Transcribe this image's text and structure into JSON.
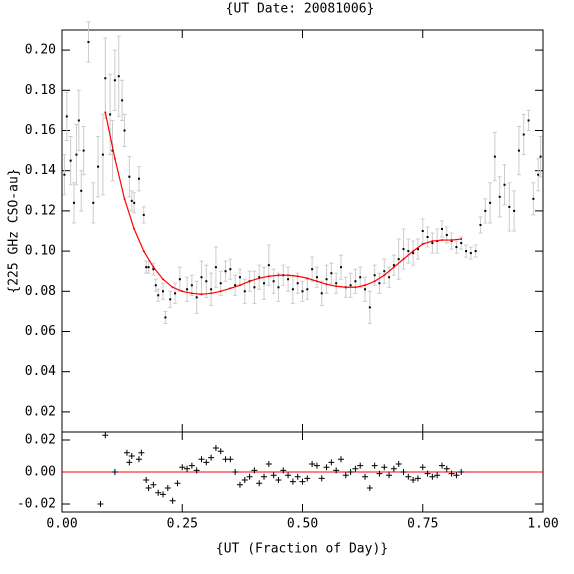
{
  "chart_data": [
    {
      "type": "scatter",
      "title": "{UT Date: 20081006}",
      "y_label": "{225 GHz CSO-au}",
      "xlim": [
        0,
        1
      ],
      "ylim": [
        0.01,
        0.21
      ],
      "yticks": [
        0.02,
        0.04,
        0.06,
        0.08,
        {
          "value": 0.1,
          "label": "0.10"
        },
        0.12,
        0.14,
        0.16,
        0.18,
        {
          "value": 0.2,
          "label": "0.20"
        }
      ],
      "series": [
        {
          "type": "scatter",
          "color": "#000000",
          "error_color": "#cccccc",
          "x": [
            0.005,
            0.01,
            0.018,
            0.025,
            0.03,
            0.035,
            0.04,
            0.045,
            0.055,
            0.065,
            0.075,
            0.085,
            0.09,
            0.1,
            0.105,
            0.11,
            0.118,
            0.125,
            0.13,
            0.14,
            0.145,
            0.15,
            0.16,
            0.17,
            0.175,
            0.18,
            0.19,
            0.195,
            0.2,
            0.21,
            0.215,
            0.225,
            0.235,
            0.245,
            0.26,
            0.27,
            0.28,
            0.29,
            0.3,
            0.31,
            0.32,
            0.33,
            0.34,
            0.35,
            0.36,
            0.37,
            0.38,
            0.39,
            0.4,
            0.41,
            0.42,
            0.43,
            0.44,
            0.45,
            0.46,
            0.47,
            0.48,
            0.49,
            0.5,
            0.51,
            0.52,
            0.53,
            0.54,
            0.55,
            0.56,
            0.57,
            0.58,
            0.59,
            0.6,
            0.61,
            0.62,
            0.63,
            0.64,
            0.65,
            0.66,
            0.67,
            0.68,
            0.69,
            0.7,
            0.71,
            0.72,
            0.73,
            0.74,
            0.75,
            0.76,
            0.77,
            0.78,
            0.79,
            0.8,
            0.81,
            0.82,
            0.83,
            0.84,
            0.85,
            0.86,
            0.87,
            0.88,
            0.89,
            0.9,
            0.91,
            0.92,
            0.93,
            0.94,
            0.95,
            0.96,
            0.97,
            0.98,
            0.99,
            0.995
          ],
          "values": [
            0.138,
            0.167,
            0.145,
            0.124,
            0.148,
            0.165,
            0.13,
            0.15,
            0.204,
            0.124,
            0.142,
            0.148,
            0.186,
            0.168,
            0.15,
            0.185,
            0.187,
            0.175,
            0.16,
            0.137,
            0.125,
            0.124,
            0.136,
            0.118,
            0.092,
            0.092,
            0.091,
            0.083,
            0.078,
            0.08,
            0.067,
            0.076,
            0.079,
            0.086,
            0.081,
            0.083,
            0.077,
            0.087,
            0.085,
            0.081,
            0.092,
            0.084,
            0.09,
            0.091,
            0.083,
            0.087,
            0.08,
            0.085,
            0.082,
            0.087,
            0.084,
            0.093,
            0.085,
            0.082,
            0.088,
            0.086,
            0.081,
            0.084,
            0.08,
            0.081,
            0.091,
            0.087,
            0.079,
            0.086,
            0.089,
            0.084,
            0.092,
            0.082,
            0.083,
            0.085,
            0.087,
            0.081,
            0.072,
            0.088,
            0.084,
            0.09,
            0.087,
            0.093,
            0.096,
            0.101,
            0.1,
            0.099,
            0.101,
            0.11,
            0.107,
            0.104,
            0.105,
            0.111,
            0.108,
            0.105,
            0.102,
            0.104,
            0.1,
            0.099,
            0.1,
            0.113,
            0.12,
            0.124,
            0.147,
            0.127,
            0.133,
            0.122,
            0.12,
            0.15,
            0.158,
            0.165,
            0.126,
            0.138,
            0.147
          ],
          "errors": [
            0.01,
            0.012,
            0.012,
            0.01,
            0.015,
            0.015,
            0.01,
            0.012,
            0.01,
            0.01,
            0.015,
            0.02,
            0.02,
            0.02,
            0.015,
            0.015,
            0.02,
            0.01,
            0.008,
            0.01,
            0.005,
            0.005,
            0.006,
            0.004,
            0.003,
            0.003,
            0.003,
            0.003,
            0.003,
            0.004,
            0.003,
            0.004,
            0.005,
            0.006,
            0.006,
            0.005,
            0.008,
            0.008,
            0.008,
            0.008,
            0.01,
            0.006,
            0.005,
            0.005,
            0.005,
            0.004,
            0.006,
            0.005,
            0.008,
            0.006,
            0.008,
            0.01,
            0.006,
            0.007,
            0.005,
            0.006,
            0.007,
            0.005,
            0.005,
            0.005,
            0.006,
            0.005,
            0.006,
            0.007,
            0.005,
            0.005,
            0.006,
            0.005,
            0.006,
            0.006,
            0.005,
            0.006,
            0.008,
            0.005,
            0.005,
            0.006,
            0.005,
            0.005,
            0.01,
            0.01,
            0.006,
            0.006,
            0.005,
            0.006,
            0.005,
            0.005,
            0.006,
            0.004,
            0.004,
            0.004,
            0.003,
            0.003,
            0.003,
            0.003,
            0.003,
            0.004,
            0.006,
            0.01,
            0.012,
            0.01,
            0.01,
            0.012,
            0.01,
            0.012,
            0.01,
            0.005,
            0.008,
            0.008,
            0.01
          ]
        },
        {
          "type": "line",
          "color": "#ff0000",
          "x": [
            0.09,
            0.11,
            0.13,
            0.15,
            0.17,
            0.19,
            0.21,
            0.23,
            0.25,
            0.27,
            0.29,
            0.31,
            0.33,
            0.35,
            0.37,
            0.39,
            0.41,
            0.43,
            0.45,
            0.47,
            0.49,
            0.51,
            0.53,
            0.55,
            0.57,
            0.59,
            0.61,
            0.63,
            0.65,
            0.67,
            0.69,
            0.71,
            0.73,
            0.75,
            0.77,
            0.79,
            0.81,
            0.83
          ],
          "values": [
            0.169,
            0.146,
            0.126,
            0.111,
            0.1,
            0.092,
            0.086,
            0.082,
            0.08,
            0.079,
            0.0785,
            0.079,
            0.08,
            0.0815,
            0.083,
            0.085,
            0.0865,
            0.0875,
            0.088,
            0.088,
            0.0875,
            0.0865,
            0.085,
            0.0835,
            0.0825,
            0.082,
            0.082,
            0.083,
            0.085,
            0.088,
            0.092,
            0.096,
            0.1,
            0.1035,
            0.105,
            0.1055,
            0.1055,
            0.106
          ]
        }
      ]
    },
    {
      "type": "scatter",
      "x_label": "{UT (Fraction of Day)}",
      "xlim": [
        0,
        1
      ],
      "ylim": [
        -0.025,
        0.025
      ],
      "xticks": [
        {
          "value": 0,
          "label": "0.00"
        },
        0.25,
        {
          "value": 0.5,
          "label": "0.50"
        },
        0.75,
        {
          "value": 1,
          "label": "1.00"
        }
      ],
      "yticks": [
        -0.02,
        {
          "value": 0,
          "label": "0.00"
        },
        0.02
      ],
      "reference_line": {
        "value": 0,
        "color": "#ff0000"
      },
      "series": [
        {
          "type": "scatter",
          "marker": "+",
          "color": "#000000",
          "x": [
            0.08,
            0.09,
            0.11,
            0.135,
            0.14,
            0.145,
            0.16,
            0.165,
            0.175,
            0.18,
            0.19,
            0.2,
            0.21,
            0.22,
            0.23,
            0.24,
            0.25,
            0.26,
            0.27,
            0.28,
            0.29,
            0.3,
            0.31,
            0.32,
            0.33,
            0.34,
            0.35,
            0.36,
            0.37,
            0.38,
            0.39,
            0.4,
            0.41,
            0.42,
            0.43,
            0.44,
            0.45,
            0.46,
            0.47,
            0.48,
            0.49,
            0.5,
            0.51,
            0.52,
            0.53,
            0.54,
            0.55,
            0.56,
            0.57,
            0.58,
            0.59,
            0.6,
            0.61,
            0.62,
            0.63,
            0.64,
            0.65,
            0.66,
            0.67,
            0.68,
            0.69,
            0.7,
            0.71,
            0.72,
            0.73,
            0.74,
            0.75,
            0.76,
            0.77,
            0.78,
            0.79,
            0.8,
            0.81,
            0.82,
            0.83
          ],
          "values": [
            -0.02,
            0.023,
            0.0,
            0.012,
            0.006,
            0.01,
            0.008,
            0.012,
            -0.005,
            -0.01,
            -0.008,
            -0.013,
            -0.014,
            -0.01,
            -0.018,
            -0.007,
            0.003,
            0.002,
            0.004,
            0.001,
            0.008,
            0.006,
            0.009,
            0.015,
            0.013,
            0.008,
            0.008,
            0.0,
            -0.008,
            -0.005,
            -0.003,
            0.001,
            -0.007,
            -0.003,
            0.005,
            -0.002,
            -0.005,
            0.001,
            -0.002,
            -0.006,
            -0.003,
            -0.006,
            -0.004,
            0.005,
            0.004,
            -0.004,
            0.003,
            0.006,
            0.001,
            0.008,
            -0.002,
            0.0,
            0.002,
            0.004,
            -0.003,
            -0.01,
            0.004,
            -0.001,
            0.003,
            -0.002,
            0.002,
            0.005,
            0.0,
            -0.003,
            -0.005,
            -0.004,
            0.003,
            -0.001,
            -0.003,
            -0.002,
            0.004,
            0.002,
            -0.001,
            -0.002,
            0.0
          ]
        }
      ]
    }
  ]
}
